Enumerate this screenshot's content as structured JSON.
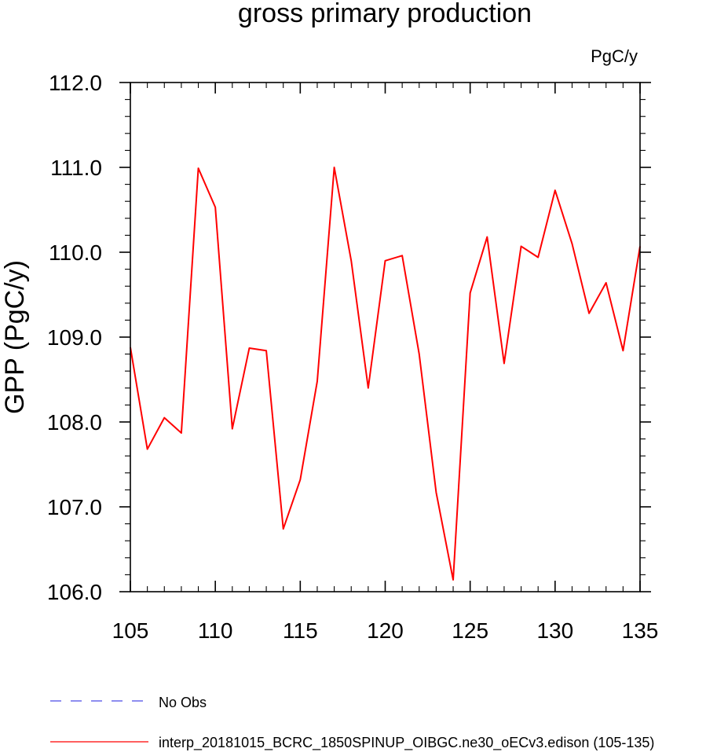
{
  "chart_data": {
    "type": "line",
    "title": "gross primary production",
    "units_label": "PgC/y",
    "ylabel": "GPP  (PgC/y)",
    "xlabel": "",
    "xlim": [
      105,
      135
    ],
    "ylim": [
      106.0,
      112.0
    ],
    "x_ticks": [
      105,
      110,
      115,
      120,
      125,
      130,
      135
    ],
    "x_tick_labels": [
      "105",
      "110",
      "115",
      "120",
      "125",
      "130",
      "135"
    ],
    "y_ticks": [
      106.0,
      107.0,
      108.0,
      109.0,
      110.0,
      111.0,
      112.0
    ],
    "y_tick_labels": [
      "106.0",
      "107.0",
      "108.0",
      "109.0",
      "110.0",
      "111.0",
      "112.0"
    ],
    "grid": false,
    "series": [
      {
        "name": "interp_20181015_BCRC_1850SPINUP_OIBGC.ne30_oECv3.edison (105-135)",
        "color": "#ff0000",
        "x": [
          105,
          106,
          107,
          108,
          109,
          110,
          111,
          112,
          113,
          114,
          115,
          116,
          117,
          118,
          119,
          120,
          121,
          122,
          123,
          124,
          125,
          126,
          127,
          128,
          129,
          130,
          131,
          132,
          133,
          134,
          135
        ],
        "y": [
          108.88,
          107.68,
          108.05,
          107.87,
          110.99,
          110.53,
          107.92,
          108.87,
          108.84,
          106.74,
          107.32,
          108.48,
          111.0,
          109.9,
          108.4,
          109.9,
          109.96,
          108.8,
          107.17,
          106.14,
          109.52,
          110.18,
          108.69,
          110.07,
          109.94,
          110.73,
          110.1,
          109.28,
          109.64,
          108.84,
          110.07
        ]
      }
    ],
    "legend": {
      "placement": "bottom",
      "entries": [
        {
          "label": "No Obs",
          "color": "#4a4ae8",
          "style": "dashed"
        },
        {
          "label": "interp_20181015_BCRC_1850SPINUP_OIBGC.ne30_oECv3.edison (105-135)",
          "color": "#ff0000",
          "style": "solid"
        }
      ]
    }
  }
}
